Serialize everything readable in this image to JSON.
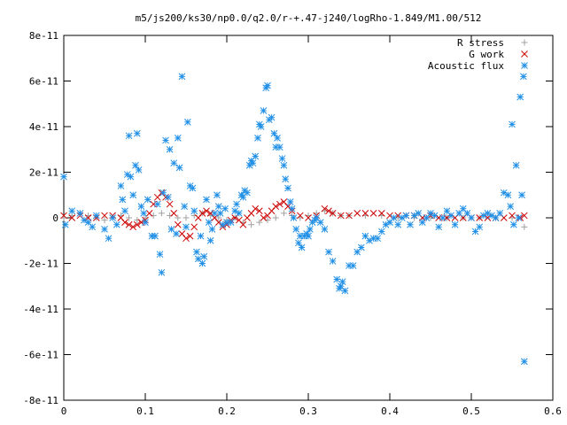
{
  "chart_data": {
    "type": "scatter",
    "title": "m5/js200/ks30/np0.0/q2.0/r-+.47-j240/logRho-1.849/M1.00/512",
    "xlabel": "",
    "ylabel": "",
    "xlim": [
      0,
      0.6
    ],
    "ylim": [
      -8e-11,
      8e-11
    ],
    "grid": false,
    "legend_position": "top-right",
    "x_ticks": [
      0,
      0.1,
      0.2,
      0.3,
      0.4,
      0.5,
      0.6
    ],
    "x_tick_labels": [
      "0",
      "0.1",
      "0.2",
      "0.3",
      "0.4",
      "0.5",
      "0.6"
    ],
    "y_ticks": [
      -8e-11,
      -6e-11,
      -4e-11,
      -2e-11,
      0,
      2e-11,
      4e-11,
      6e-11,
      8e-11
    ],
    "y_tick_labels": [
      "-8e-11",
      "-6e-11",
      "-4e-11",
      "-2e-11",
      "0",
      "2e-11",
      "4e-11",
      "6e-11",
      "8e-11"
    ],
    "series": [
      {
        "name": "R stress",
        "marker": "plus",
        "color": "#a0a0a0",
        "points": [
          [
            0.0,
            0.0
          ],
          [
            0.01,
            1e-12
          ],
          [
            0.02,
            2e-12
          ],
          [
            0.03,
            1e-12
          ],
          [
            0.04,
            0.0
          ],
          [
            0.05,
            -1e-12
          ],
          [
            0.06,
            0.0
          ],
          [
            0.07,
            1e-12
          ],
          [
            0.08,
            0.0
          ],
          [
            0.09,
            -1e-12
          ],
          [
            0.1,
            0.0
          ],
          [
            0.11,
            1e-12
          ],
          [
            0.12,
            2e-12
          ],
          [
            0.13,
            1e-12
          ],
          [
            0.14,
            0.0
          ],
          [
            0.15,
            0.0
          ],
          [
            0.16,
            1e-12
          ],
          [
            0.17,
            2e-12
          ],
          [
            0.18,
            1e-12
          ],
          [
            0.19,
            0.0
          ],
          [
            0.2,
            -1e-12
          ],
          [
            0.21,
            0.0
          ],
          [
            0.22,
            -2e-12
          ],
          [
            0.23,
            -3e-12
          ],
          [
            0.24,
            -2e-12
          ],
          [
            0.25,
            -1e-12
          ],
          [
            0.26,
            0.0
          ],
          [
            0.27,
            2e-12
          ],
          [
            0.28,
            1e-12
          ],
          [
            0.29,
            0.0
          ],
          [
            0.3,
            1e-12
          ],
          [
            0.31,
            2e-12
          ],
          [
            0.32,
            3e-12
          ],
          [
            0.33,
            2e-12
          ],
          [
            0.34,
            1e-12
          ],
          [
            0.35,
            1e-12
          ],
          [
            0.37,
            1e-12
          ],
          [
            0.39,
            1e-12
          ],
          [
            0.41,
            0.0
          ],
          [
            0.43,
            0.0
          ],
          [
            0.45,
            0.0
          ],
          [
            0.47,
            0.0
          ],
          [
            0.49,
            0.0
          ],
          [
            0.51,
            0.0
          ],
          [
            0.53,
            0.0
          ],
          [
            0.55,
            0.0
          ],
          [
            0.565,
            -4e-12
          ]
        ]
      },
      {
        "name": "G work",
        "marker": "cross",
        "color": "#cc0000",
        "points": [
          [
            0.0,
            1e-12
          ],
          [
            0.01,
            0.0
          ],
          [
            0.02,
            1e-12
          ],
          [
            0.03,
            0.0
          ],
          [
            0.04,
            0.0
          ],
          [
            0.05,
            1e-12
          ],
          [
            0.06,
            1e-12
          ],
          [
            0.07,
            0.0
          ],
          [
            0.075,
            -2e-12
          ],
          [
            0.08,
            -3e-12
          ],
          [
            0.085,
            -4e-12
          ],
          [
            0.09,
            -3e-12
          ],
          [
            0.095,
            -2e-12
          ],
          [
            0.1,
            -1e-12
          ],
          [
            0.105,
            2e-12
          ],
          [
            0.11,
            6e-12
          ],
          [
            0.115,
            9e-12
          ],
          [
            0.12,
            1.1e-11
          ],
          [
            0.125,
            9e-12
          ],
          [
            0.13,
            6e-12
          ],
          [
            0.135,
            2e-12
          ],
          [
            0.14,
            -3e-12
          ],
          [
            0.145,
            -7e-12
          ],
          [
            0.15,
            -9e-12
          ],
          [
            0.155,
            -8e-12
          ],
          [
            0.16,
            -4e-12
          ],
          [
            0.165,
            0.0
          ],
          [
            0.17,
            2e-12
          ],
          [
            0.175,
            3e-12
          ],
          [
            0.18,
            2e-12
          ],
          [
            0.185,
            0.0
          ],
          [
            0.19,
            -2e-12
          ],
          [
            0.195,
            -4e-12
          ],
          [
            0.2,
            -3e-12
          ],
          [
            0.205,
            -1e-12
          ],
          [
            0.21,
            0.0
          ],
          [
            0.215,
            -1e-12
          ],
          [
            0.22,
            -3e-12
          ],
          [
            0.225,
            0.0
          ],
          [
            0.23,
            2e-12
          ],
          [
            0.235,
            4e-12
          ],
          [
            0.24,
            3e-12
          ],
          [
            0.245,
            0.0
          ],
          [
            0.25,
            1e-12
          ],
          [
            0.255,
            3e-12
          ],
          [
            0.26,
            5e-12
          ],
          [
            0.265,
            6e-12
          ],
          [
            0.27,
            7e-12
          ],
          [
            0.275,
            5e-12
          ],
          [
            0.28,
            3e-12
          ],
          [
            0.29,
            1e-12
          ],
          [
            0.3,
            0.0
          ],
          [
            0.31,
            1e-12
          ],
          [
            0.32,
            4e-12
          ],
          [
            0.325,
            3e-12
          ],
          [
            0.33,
            2e-12
          ],
          [
            0.34,
            1e-12
          ],
          [
            0.35,
            1e-12
          ],
          [
            0.36,
            2e-12
          ],
          [
            0.37,
            2e-12
          ],
          [
            0.38,
            2e-12
          ],
          [
            0.39,
            2e-12
          ],
          [
            0.4,
            1e-12
          ],
          [
            0.41,
            1e-12
          ],
          [
            0.42,
            1e-12
          ],
          [
            0.43,
            1e-12
          ],
          [
            0.44,
            0.0
          ],
          [
            0.45,
            1e-12
          ],
          [
            0.46,
            0.0
          ],
          [
            0.47,
            0.0
          ],
          [
            0.48,
            0.0
          ],
          [
            0.49,
            0.0
          ],
          [
            0.5,
            0.0
          ],
          [
            0.51,
            0.0
          ],
          [
            0.52,
            0.0
          ],
          [
            0.53,
            0.0
          ],
          [
            0.54,
            0.0
          ],
          [
            0.55,
            1e-12
          ],
          [
            0.56,
            0.0
          ],
          [
            0.565,
            1e-12
          ]
        ]
      },
      {
        "name": "Acoustic flux",
        "marker": "star",
        "color": "#1f8fe6",
        "points": [
          [
            0.0,
            1.8e-11
          ],
          [
            0.002,
            -3e-12
          ],
          [
            0.01,
            3e-12
          ],
          [
            0.02,
            2e-12
          ],
          [
            0.025,
            -1e-12
          ],
          [
            0.03,
            -2e-12
          ],
          [
            0.035,
            -4e-12
          ],
          [
            0.04,
            1e-12
          ],
          [
            0.05,
            -5e-12
          ],
          [
            0.055,
            -9e-12
          ],
          [
            0.06,
            0.0
          ],
          [
            0.065,
            -3e-12
          ],
          [
            0.07,
            1.4e-11
          ],
          [
            0.072,
            8e-12
          ],
          [
            0.075,
            3e-12
          ],
          [
            0.078,
            1.9e-11
          ],
          [
            0.08,
            3.6e-11
          ],
          [
            0.082,
            1.8e-11
          ],
          [
            0.085,
            1e-11
          ],
          [
            0.088,
            2.3e-11
          ],
          [
            0.09,
            3.7e-11
          ],
          [
            0.092,
            2.1e-11
          ],
          [
            0.095,
            5e-12
          ],
          [
            0.098,
            2e-12
          ],
          [
            0.1,
            -2e-12
          ],
          [
            0.103,
            8e-12
          ],
          [
            0.108,
            -8e-12
          ],
          [
            0.112,
            -8e-12
          ],
          [
            0.115,
            6e-12
          ],
          [
            0.118,
            -1.6e-11
          ],
          [
            0.12,
            -2.4e-11
          ],
          [
            0.122,
            1.1e-11
          ],
          [
            0.125,
            3.4e-11
          ],
          [
            0.128,
            9e-12
          ],
          [
            0.13,
            3e-11
          ],
          [
            0.132,
            -5e-12
          ],
          [
            0.135,
            2.4e-11
          ],
          [
            0.138,
            -7e-12
          ],
          [
            0.14,
            3.5e-11
          ],
          [
            0.142,
            2.2e-11
          ],
          [
            0.145,
            6.2e-11
          ],
          [
            0.148,
            5e-12
          ],
          [
            0.15,
            -4e-12
          ],
          [
            0.152,
            4.2e-11
          ],
          [
            0.155,
            1.4e-11
          ],
          [
            0.158,
            1.3e-11
          ],
          [
            0.16,
            3e-12
          ],
          [
            0.163,
            -1.5e-11
          ],
          [
            0.165,
            -1.8e-11
          ],
          [
            0.168,
            -8e-12
          ],
          [
            0.17,
            -2e-11
          ],
          [
            0.172,
            -1.7e-11
          ],
          [
            0.175,
            8e-12
          ],
          [
            0.178,
            -2e-12
          ],
          [
            0.18,
            -1e-11
          ],
          [
            0.182,
            -5e-12
          ],
          [
            0.185,
            2e-12
          ],
          [
            0.188,
            1e-11
          ],
          [
            0.19,
            5e-12
          ],
          [
            0.192,
            2e-12
          ],
          [
            0.195,
            -3e-12
          ],
          [
            0.198,
            4e-12
          ],
          [
            0.2,
            -2e-12
          ],
          [
            0.205,
            -2e-12
          ],
          [
            0.21,
            3e-12
          ],
          [
            0.212,
            6e-12
          ],
          [
            0.215,
            2e-12
          ],
          [
            0.218,
            1e-11
          ],
          [
            0.22,
            9e-12
          ],
          [
            0.222,
            1.2e-11
          ],
          [
            0.225,
            1.1e-11
          ],
          [
            0.228,
            2.3e-11
          ],
          [
            0.23,
            2.5e-11
          ],
          [
            0.232,
            2.4e-11
          ],
          [
            0.235,
            2.7e-11
          ],
          [
            0.238,
            3.5e-11
          ],
          [
            0.24,
            4.1e-11
          ],
          [
            0.242,
            4e-11
          ],
          [
            0.245,
            4.7e-11
          ],
          [
            0.248,
            5.7e-11
          ],
          [
            0.25,
            5.8e-11
          ],
          [
            0.252,
            4.3e-11
          ],
          [
            0.255,
            4.4e-11
          ],
          [
            0.258,
            3.7e-11
          ],
          [
            0.26,
            3.1e-11
          ],
          [
            0.262,
            3.5e-11
          ],
          [
            0.265,
            3.1e-11
          ],
          [
            0.268,
            2.6e-11
          ],
          [
            0.27,
            2.3e-11
          ],
          [
            0.272,
            1.7e-11
          ],
          [
            0.275,
            1.3e-11
          ],
          [
            0.278,
            7e-12
          ],
          [
            0.28,
            4e-12
          ],
          [
            0.282,
            0.0
          ],
          [
            0.285,
            -5e-12
          ],
          [
            0.288,
            -1.1e-11
          ],
          [
            0.29,
            -8e-12
          ],
          [
            0.292,
            -1.3e-11
          ],
          [
            0.295,
            -8e-12
          ],
          [
            0.298,
            -7e-12
          ],
          [
            0.3,
            -8e-12
          ],
          [
            0.302,
            -5e-12
          ],
          [
            0.305,
            -2e-12
          ],
          [
            0.308,
            -1e-12
          ],
          [
            0.31,
            0.0
          ],
          [
            0.315,
            -2e-12
          ],
          [
            0.32,
            -5e-12
          ],
          [
            0.325,
            -1.5e-11
          ],
          [
            0.33,
            -1.9e-11
          ],
          [
            0.335,
            -2.7e-11
          ],
          [
            0.338,
            -3.1e-11
          ],
          [
            0.34,
            -3e-11
          ],
          [
            0.342,
            -2.8e-11
          ],
          [
            0.345,
            -3.2e-11
          ],
          [
            0.35,
            -2.1e-11
          ],
          [
            0.355,
            -2.1e-11
          ],
          [
            0.36,
            -1.5e-11
          ],
          [
            0.365,
            -1.3e-11
          ],
          [
            0.37,
            -8e-12
          ],
          [
            0.375,
            -1e-11
          ],
          [
            0.38,
            -9e-12
          ],
          [
            0.385,
            -9e-12
          ],
          [
            0.39,
            -6e-12
          ],
          [
            0.395,
            -3e-12
          ],
          [
            0.4,
            -2e-12
          ],
          [
            0.405,
            0.0
          ],
          [
            0.41,
            -3e-12
          ],
          [
            0.415,
            0.0
          ],
          [
            0.42,
            1e-12
          ],
          [
            0.425,
            -3e-12
          ],
          [
            0.43,
            1e-12
          ],
          [
            0.435,
            2e-12
          ],
          [
            0.44,
            -2e-12
          ],
          [
            0.445,
            0.0
          ],
          [
            0.45,
            2e-12
          ],
          [
            0.455,
            1e-12
          ],
          [
            0.46,
            -4e-12
          ],
          [
            0.465,
            0.0
          ],
          [
            0.47,
            3e-12
          ],
          [
            0.475,
            1e-12
          ],
          [
            0.48,
            -3e-12
          ],
          [
            0.485,
            2e-12
          ],
          [
            0.49,
            4e-12
          ],
          [
            0.495,
            2e-12
          ],
          [
            0.5,
            0.0
          ],
          [
            0.505,
            -6e-12
          ],
          [
            0.51,
            -4e-12
          ],
          [
            0.515,
            1e-12
          ],
          [
            0.52,
            2e-12
          ],
          [
            0.525,
            1e-12
          ],
          [
            0.53,
            0.0
          ],
          [
            0.535,
            2e-12
          ],
          [
            0.54,
            1.1e-11
          ],
          [
            0.545,
            1e-11
          ],
          [
            0.548,
            5e-12
          ],
          [
            0.55,
            4.1e-11
          ],
          [
            0.552,
            -3e-12
          ],
          [
            0.555,
            2.3e-11
          ],
          [
            0.558,
            0.0
          ],
          [
            0.56,
            5.3e-11
          ],
          [
            0.562,
            1e-11
          ],
          [
            0.564,
            6.2e-11
          ],
          [
            0.565,
            -6.3e-11
          ]
        ]
      }
    ]
  }
}
